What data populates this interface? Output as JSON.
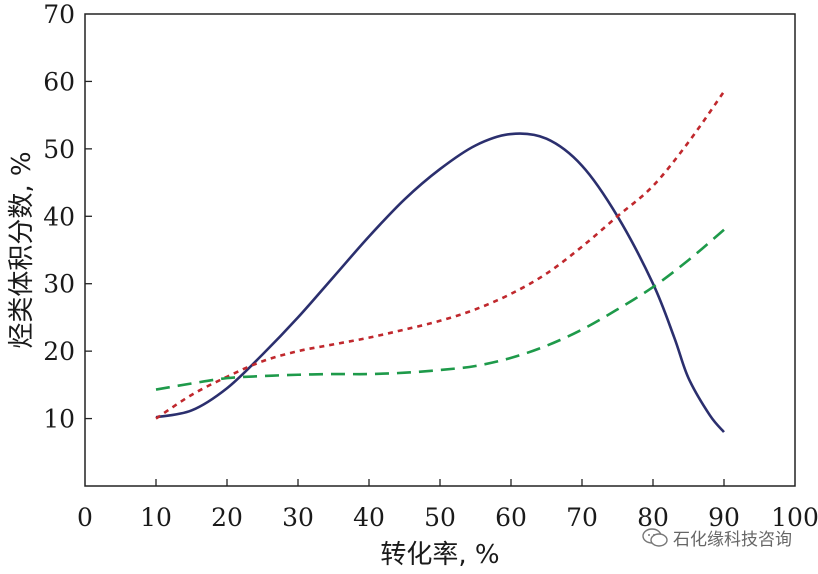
{
  "chart_data": {
    "type": "line",
    "xlabel": "转化率, %",
    "ylabel": "烃类体积分数, %",
    "xlim": [
      0,
      100
    ],
    "ylim": [
      0,
      70
    ],
    "x_ticks": [
      0,
      10,
      20,
      30,
      40,
      50,
      60,
      70,
      80,
      90,
      100
    ],
    "y_ticks": [
      10,
      20,
      30,
      40,
      50,
      60,
      70
    ],
    "grid": false,
    "series": [
      {
        "color": "#2b2f6e",
        "style": "solid",
        "x": [
          10,
          15,
          20,
          25,
          30,
          35,
          40,
          45,
          50,
          55,
          60,
          65,
          70,
          75,
          80,
          83,
          85,
          88,
          90
        ],
        "y": [
          10.2,
          11.2,
          14.5,
          19.5,
          25.0,
          31.0,
          37.0,
          42.5,
          47.0,
          50.5,
          52.2,
          51.5,
          47.5,
          40.0,
          30.0,
          22.0,
          16.0,
          10.5,
          8.0
        ]
      },
      {
        "color": "#c0282d",
        "style": "dotted",
        "x": [
          10,
          15,
          20,
          25,
          30,
          35,
          40,
          45,
          50,
          55,
          60,
          65,
          70,
          75,
          80,
          85,
          90
        ],
        "y": [
          10.0,
          13.5,
          16.2,
          18.5,
          20.0,
          21.0,
          22.0,
          23.2,
          24.5,
          26.2,
          28.5,
          31.5,
          35.5,
          40.0,
          44.5,
          51.0,
          58.5
        ]
      },
      {
        "color": "#1e9a4a",
        "style": "dashed",
        "x": [
          10,
          15,
          20,
          25,
          30,
          35,
          40,
          45,
          50,
          55,
          60,
          65,
          70,
          75,
          80,
          85,
          90
        ],
        "y": [
          14.3,
          15.2,
          16.0,
          16.3,
          16.5,
          16.6,
          16.6,
          16.8,
          17.2,
          17.8,
          19.0,
          20.8,
          23.2,
          26.2,
          29.5,
          33.5,
          38.0
        ]
      }
    ]
  },
  "watermark": {
    "text": "石化缘科技咨询",
    "icon": "wechat-icon"
  }
}
